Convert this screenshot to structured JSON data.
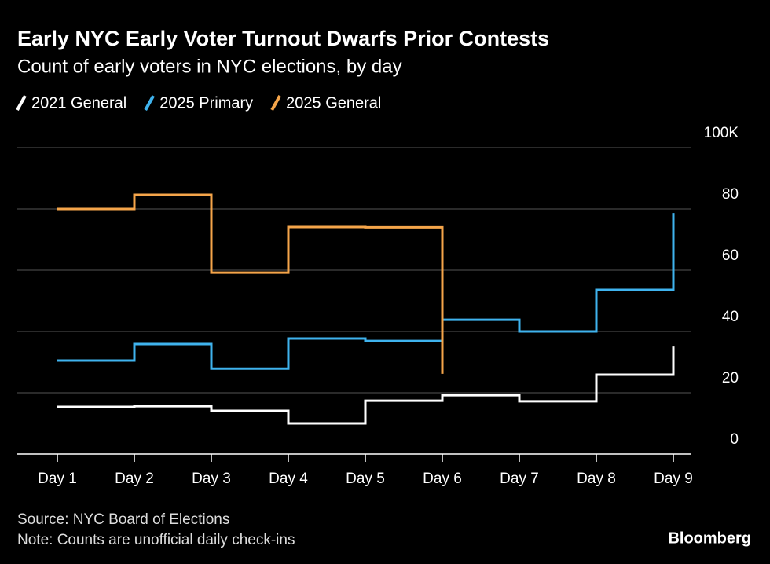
{
  "chart_data": {
    "type": "step",
    "title": "Early NYC Early Voter Turnout Dwarfs Prior Contests",
    "subtitle": "Count of early voters in NYC elections, by day",
    "categories": [
      "Day 1",
      "Day 2",
      "Day 3",
      "Day 4",
      "Day 5",
      "Day 6",
      "Day 7",
      "Day 8",
      "Day 9"
    ],
    "series": [
      {
        "name": "2021 General",
        "color": "#ffffff",
        "values": [
          15.4,
          15.6,
          14.1,
          10,
          17.4,
          19.2,
          17.2,
          25.9,
          35.1
        ]
      },
      {
        "name": "2025 Primary",
        "color": "#3fb3ee",
        "values": [
          30.5,
          35.9,
          27.9,
          37.7,
          36.9,
          43.8,
          40,
          53.6,
          78.7
        ]
      },
      {
        "name": "2025 General",
        "color": "#f5a54a",
        "values": [
          80,
          84.6,
          59.2,
          74.1,
          74,
          26.2,
          null,
          null,
          null
        ]
      }
    ],
    "ylim": [
      0,
      100
    ],
    "yticks": [
      0,
      20,
      40,
      60,
      80,
      {
        "value": 100,
        "label": "100K"
      }
    ],
    "grid": true,
    "source": "Source: NYC Board of Elections",
    "note": "Note: Counts are unofficial daily check-ins",
    "brand": "Bloomberg"
  }
}
